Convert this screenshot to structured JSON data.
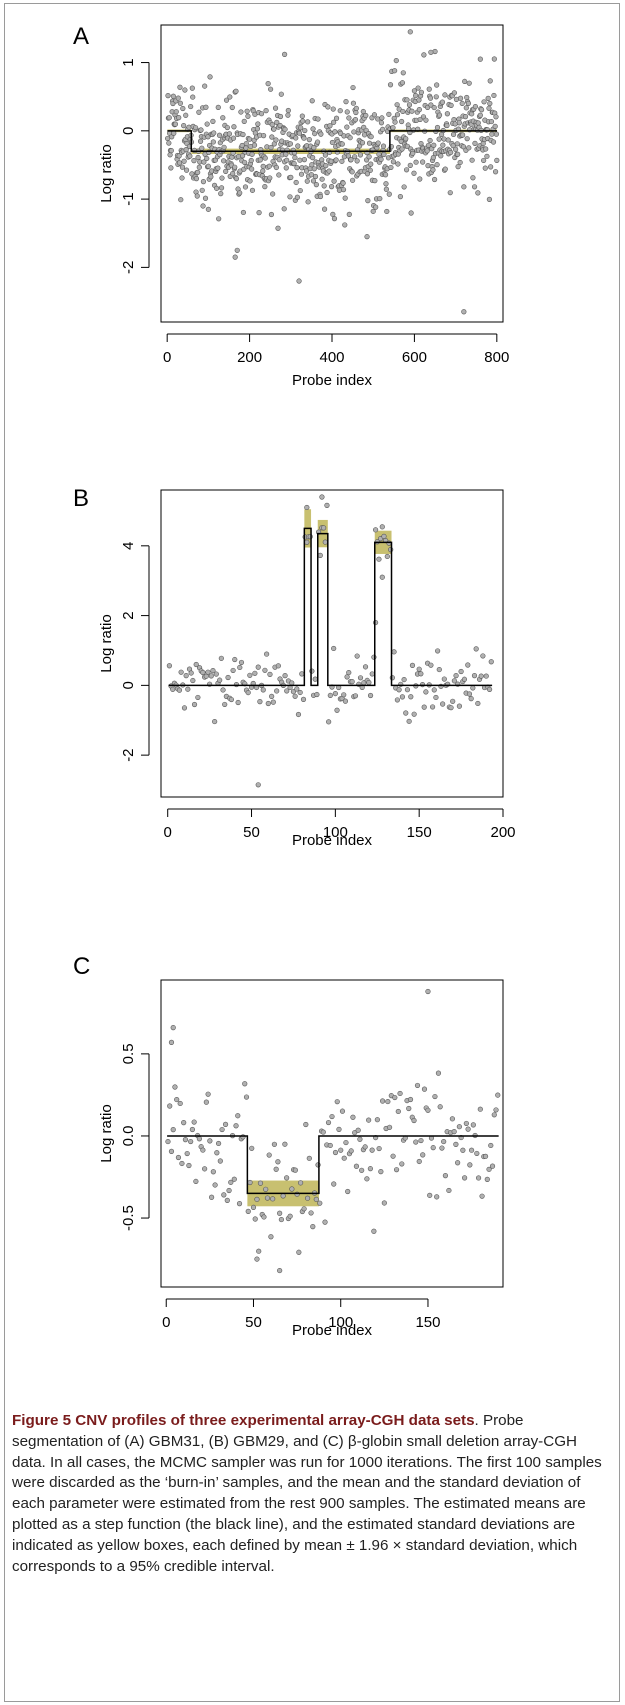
{
  "caption": {
    "title": "Figure 5 CNV profiles of three experimental array-CGH data sets",
    "text": ". Probe segmentation of (A) GBM31, (B) GBM29, and (C) β-globin small deletion array-CGH data. In all cases, the MCMC sampler was run for 1000 iterations. The first 100 samples were discarded as the ‘burn-in’ samples, and the mean and the standard deviation of each parameter were estimated from the rest 900 samples. The estimated means are plotted as a step function (the black line), and the estimated standard deviations are indicated as yellow boxes, each defined by mean ± 1.96 × standard deviation, which corresponds to a 95% credible interval."
  },
  "colors": {
    "points_fill": "#b0b0b0",
    "points_stroke": "#555555",
    "band": "#c8c070",
    "step_line": "#000000"
  },
  "chart_data": [
    {
      "type": "scatter",
      "panel_label": "A",
      "xlabel": "Probe index",
      "ylabel": "Log ratio",
      "xlim": [
        -15,
        815
      ],
      "ylim": [
        -2.8,
        1.55
      ],
      "xticks": [
        0,
        200,
        400,
        600,
        800
      ],
      "yticks": [
        -2,
        -1,
        0,
        1
      ],
      "n_points": 800,
      "noise_sd": 0.4,
      "seed": 11,
      "segments": [
        {
          "start": 1,
          "end": 58,
          "mean": 0.0,
          "sd": 0.01
        },
        {
          "start": 59,
          "end": 540,
          "mean": -0.3,
          "sd": 0.02
        },
        {
          "start": 541,
          "end": 800,
          "mean": 0.0,
          "sd": 0.01
        }
      ],
      "outliers": [
        [
          100,
          -1.15
        ],
        [
          165,
          -1.85
        ],
        [
          170,
          -1.75
        ],
        [
          320,
          -2.2
        ],
        [
          720,
          -2.65
        ],
        [
          590,
          1.45
        ],
        [
          640,
          1.15
        ],
        [
          285,
          1.12
        ],
        [
          760,
          1.05
        ],
        [
          485,
          -1.55
        ]
      ]
    },
    {
      "type": "scatter",
      "panel_label": "B",
      "xlabel": "Probe index",
      "ylabel": "Log ratio",
      "xlim": [
        -4,
        200
      ],
      "ylim": [
        -3.2,
        5.6
      ],
      "xticks": [
        0,
        50,
        100,
        150,
        200
      ],
      "yticks": [
        -2,
        0,
        2,
        4
      ],
      "n_points": 193,
      "noise_sd": 0.4,
      "seed": 29,
      "segments": [
        {
          "start": 1,
          "end": 81,
          "mean": 0.0,
          "sd": 0.0
        },
        {
          "start": 82,
          "end": 85,
          "mean": 4.5,
          "sd": 0.28
        },
        {
          "start": 86,
          "end": 89,
          "mean": 0.0,
          "sd": 0.0
        },
        {
          "start": 90,
          "end": 95,
          "mean": 4.35,
          "sd": 0.2
        },
        {
          "start": 96,
          "end": 123,
          "mean": 0.0,
          "sd": 0.0
        },
        {
          "start": 124,
          "end": 133,
          "mean": 4.1,
          "sd": 0.17
        },
        {
          "start": 134,
          "end": 193,
          "mean": 0.0,
          "sd": 0.0
        }
      ],
      "outliers": [
        [
          54,
          -2.85
        ],
        [
          83,
          5.1
        ],
        [
          92,
          5.4
        ],
        [
          128,
          3.1
        ],
        [
          124,
          1.8
        ]
      ]
    },
    {
      "type": "scatter",
      "panel_label": "C",
      "xlabel": "Probe index",
      "ylabel": "Log ratio",
      "xlim": [
        -3,
        193
      ],
      "ylim": [
        -0.92,
        0.95
      ],
      "xticks": [
        0,
        50,
        100,
        150
      ],
      "yticks": [
        -0.5,
        0.0,
        0.5
      ],
      "n_points": 190,
      "noise_sd": 0.18,
      "seed": 5,
      "segments": [
        {
          "start": 1,
          "end": 46,
          "mean": 0.0,
          "sd": 0.0
        },
        {
          "start": 47,
          "end": 87,
          "mean": -0.35,
          "sd": 0.04
        },
        {
          "start": 88,
          "end": 190,
          "mean": 0.0,
          "sd": 0.0
        }
      ],
      "outliers": [
        [
          3,
          0.57
        ],
        [
          4,
          0.66
        ],
        [
          150,
          0.88
        ],
        [
          65,
          -0.82
        ],
        [
          52,
          -0.75
        ]
      ]
    }
  ]
}
